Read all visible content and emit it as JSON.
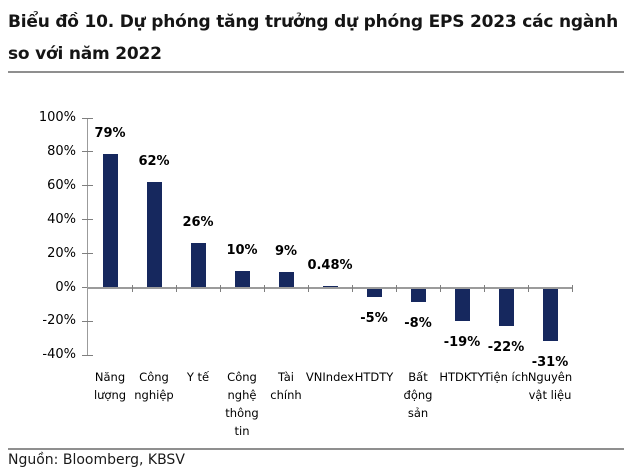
{
  "chart_data": {
    "type": "bar",
    "title": "Biểu đồ 10. Dự phóng tăng trưởng dự phóng EPS 2023 các ngành\nso với năm 2022",
    "categories": [
      "Năng lượng",
      "Công nghiệp",
      "Y tế",
      "Công nghệ thông tin",
      "Tài chính",
      "VNIndex",
      "HTDTY",
      "Bất động sản",
      "HTDKTY",
      "Tiện ích",
      "Nguyên vật liệu"
    ],
    "category_label_lines": [
      [
        "Năng",
        "lượng"
      ],
      [
        "Công",
        "nghiệp"
      ],
      [
        "Y tế"
      ],
      [
        "Công",
        "nghệ",
        "thông",
        "tin"
      ],
      [
        "Tài",
        "chính"
      ],
      [
        "VNIndex"
      ],
      [
        "HTDTY"
      ],
      [
        "Bất",
        "động",
        "sản"
      ],
      [
        "HTDKTY"
      ],
      [
        "Tiện ích"
      ],
      [
        "Nguyên",
        "vật liệu"
      ]
    ],
    "values": [
      79,
      62,
      26,
      10,
      9,
      0.48,
      -5,
      -8,
      -19,
      -22,
      -31
    ],
    "value_labels": [
      "79%",
      "62%",
      "26%",
      "10%",
      "9%",
      "0.48%",
      "-5%",
      "-8%",
      "-19%",
      "-22%",
      "-31%"
    ],
    "yticks": [
      100,
      80,
      60,
      40,
      20,
      0,
      -20,
      -40
    ],
    "ytick_labels": [
      "100%",
      "80%",
      "60%",
      "40%",
      "20%",
      "0%",
      "-20%",
      "-40%"
    ],
    "ylim": [
      -40,
      100
    ],
    "unit": "%",
    "grid": false,
    "legend": "none",
    "bar_color": "#16285e",
    "axis_color": "#9b9b9b",
    "tick_color": "#7f7f7f"
  },
  "footer": {
    "source": "Nguồn: Bloomberg, KBSV"
  }
}
